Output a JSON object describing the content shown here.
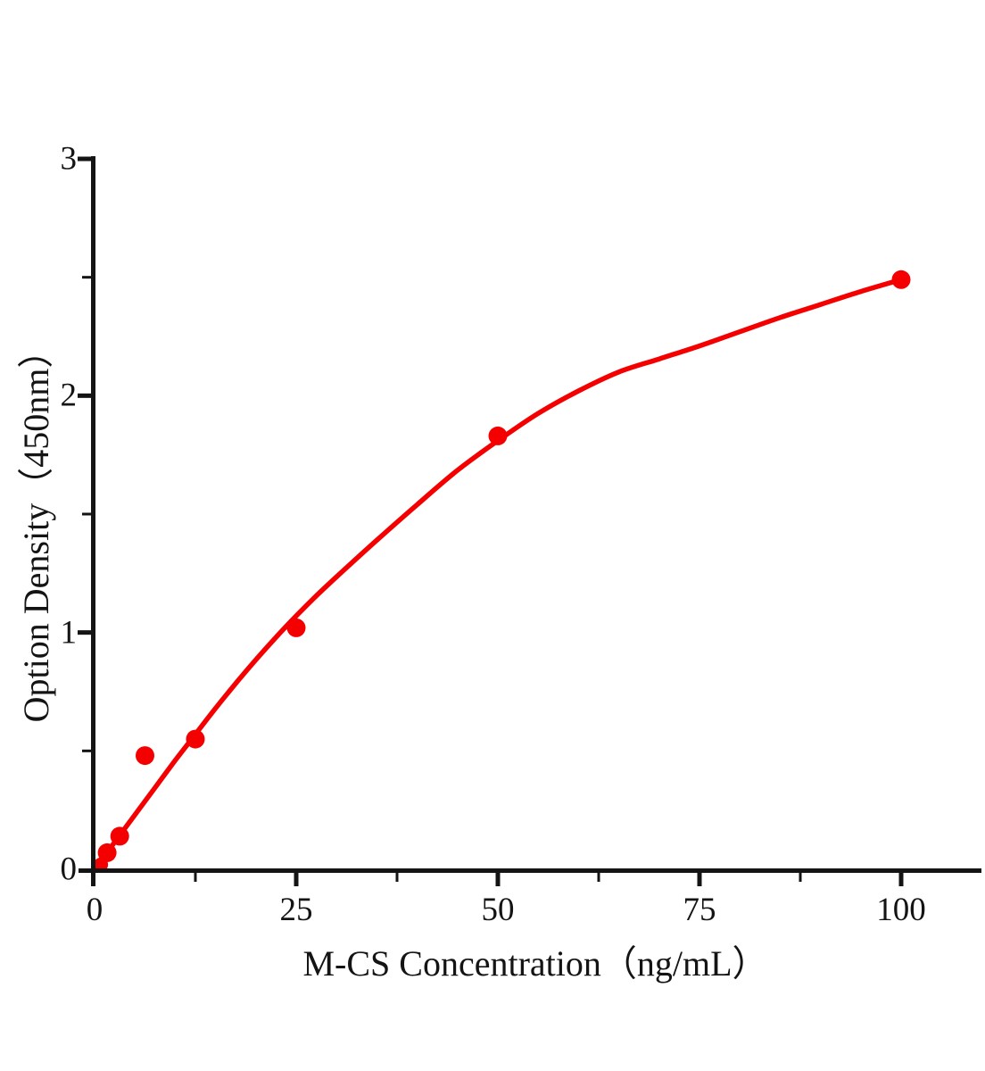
{
  "figure": {
    "background_color": "#ffffff",
    "axis_color": "#141414",
    "text_color": "#141414",
    "accent_color": "#f40000"
  },
  "chart_data": {
    "type": "scatter",
    "title": "",
    "xlabel": "M-CS Concentration（ng/mL）",
    "ylabel": "Option Density（450nm）",
    "xlim": [
      0,
      110
    ],
    "ylim": [
      0,
      3
    ],
    "grid": false,
    "legend": false,
    "x_ticks": [
      0,
      25,
      50,
      75,
      100
    ],
    "x_tick_labels": [
      "0",
      "25",
      "50",
      "75",
      "100"
    ],
    "x_minor_ticks": [
      12.5,
      37.5,
      62.5,
      87.5
    ],
    "y_ticks": [
      0,
      1,
      2,
      3
    ],
    "y_tick_labels": [
      "0",
      "1",
      "2",
      "3"
    ],
    "y_minor_ticks": [
      0.5,
      1.5,
      2.5
    ],
    "series": [
      {
        "marker": "circle",
        "marker_color": "#f40000",
        "line_color": "#f40000",
        "points": [
          [
            0.78,
            0.02
          ],
          [
            1.56,
            0.07
          ],
          [
            3.12,
            0.14
          ],
          [
            6.25,
            0.48
          ],
          [
            12.5,
            0.55
          ],
          [
            25,
            1.02
          ],
          [
            50,
            1.83
          ],
          [
            100,
            2.49
          ]
        ],
        "fit_curve": [
          [
            0,
            0.0
          ],
          [
            2.5,
            0.115
          ],
          [
            5,
            0.23
          ],
          [
            7.5,
            0.345
          ],
          [
            10,
            0.46
          ],
          [
            12.5,
            0.57
          ],
          [
            15,
            0.68
          ],
          [
            17.5,
            0.785
          ],
          [
            20,
            0.885
          ],
          [
            22.5,
            0.98
          ],
          [
            25,
            1.07
          ],
          [
            27.5,
            1.155
          ],
          [
            30,
            1.235
          ],
          [
            35,
            1.39
          ],
          [
            40,
            1.54
          ],
          [
            45,
            1.685
          ],
          [
            50,
            1.81
          ],
          [
            55,
            1.925
          ],
          [
            60,
            2.02
          ],
          [
            65,
            2.1
          ],
          [
            70,
            2.155
          ],
          [
            75,
            2.21
          ],
          [
            80,
            2.27
          ],
          [
            85,
            2.33
          ],
          [
            90,
            2.385
          ],
          [
            95,
            2.44
          ],
          [
            100,
            2.49
          ]
        ]
      }
    ]
  }
}
